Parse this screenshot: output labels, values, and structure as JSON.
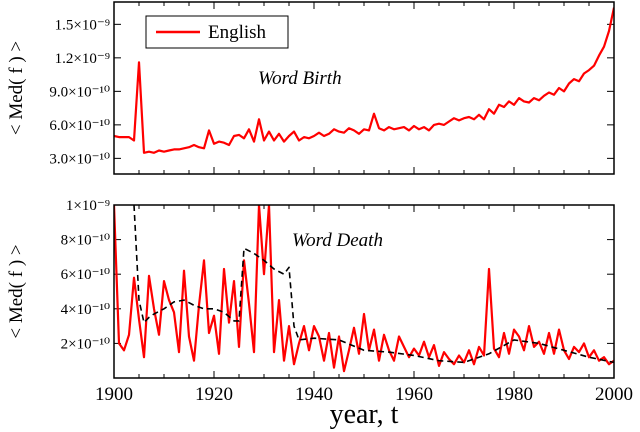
{
  "legend": {
    "entries": [
      "English"
    ]
  },
  "chart_data": [
    {
      "type": "line",
      "annotation": "Word Birth",
      "ylabel": "< Med( f ) >",
      "xlim": [
        1900,
        2000
      ],
      "ylim": [
        1.6e-10,
        1.7e-09
      ],
      "yticks": [
        "3.0×10⁻¹⁰",
        "6.0×10⁻¹⁰",
        "9.0×10⁻¹⁰",
        "1.2×10⁻⁹",
        "1.5×10⁻⁹"
      ],
      "ytick_values": [
        3e-10,
        6e-10,
        9e-10,
        1.2e-09,
        1.5e-09
      ],
      "legend_placement": "top-left",
      "series": [
        {
          "name": "English",
          "color": "#ff0000",
          "style": "solid",
          "x": [
            1900,
            1901,
            1902,
            1903,
            1904,
            1905,
            1906,
            1907,
            1908,
            1909,
            1910,
            1911,
            1912,
            1913,
            1914,
            1915,
            1916,
            1917,
            1918,
            1919,
            1920,
            1921,
            1922,
            1923,
            1924,
            1925,
            1926,
            1927,
            1928,
            1929,
            1930,
            1931,
            1932,
            1933,
            1934,
            1935,
            1936,
            1937,
            1938,
            1939,
            1940,
            1941,
            1942,
            1943,
            1944,
            1945,
            1946,
            1947,
            1948,
            1949,
            1950,
            1951,
            1952,
            1953,
            1954,
            1955,
            1956,
            1957,
            1958,
            1959,
            1960,
            1961,
            1962,
            1963,
            1964,
            1965,
            1966,
            1967,
            1968,
            1969,
            1970,
            1971,
            1972,
            1973,
            1974,
            1975,
            1976,
            1977,
            1978,
            1979,
            1980,
            1981,
            1982,
            1983,
            1984,
            1985,
            1986,
            1987,
            1988,
            1989,
            1990,
            1991,
            1992,
            1993,
            1994,
            1995,
            1996,
            1997,
            1998,
            1999,
            2000
          ],
          "y": [
            5e-10,
            4.9e-10,
            4.9e-10,
            4.9e-10,
            4.6e-10,
            1.16e-09,
            3.5e-10,
            3.6e-10,
            3.5e-10,
            3.7e-10,
            3.6e-10,
            3.7e-10,
            3.8e-10,
            3.8e-10,
            3.9e-10,
            4e-10,
            4.2e-10,
            4e-10,
            3.9e-10,
            5.5e-10,
            4.3e-10,
            4.5e-10,
            4.4e-10,
            4.2e-10,
            5e-10,
            5.1e-10,
            4.8e-10,
            5.6e-10,
            4.5e-10,
            6.5e-10,
            4.6e-10,
            5.4e-10,
            4.6e-10,
            5.2e-10,
            4.5e-10,
            5e-10,
            5.4e-10,
            4.6e-10,
            4.9e-10,
            4.8e-10,
            5e-10,
            5.3e-10,
            5e-10,
            5.2e-10,
            5.6e-10,
            5.4e-10,
            5.3e-10,
            5.7e-10,
            5.5e-10,
            5.2e-10,
            5.6e-10,
            5.5e-10,
            7e-10,
            5.7e-10,
            5.5e-10,
            5.8e-10,
            5.6e-10,
            5.7e-10,
            5.8e-10,
            5.5e-10,
            5.9e-10,
            5.6e-10,
            5.8e-10,
            5.5e-10,
            6e-10,
            6.1e-10,
            6e-10,
            6.3e-10,
            6.6e-10,
            6.4e-10,
            6.6e-10,
            6.7e-10,
            6.5e-10,
            6.9e-10,
            6.5e-10,
            7.4e-10,
            7e-10,
            7.8e-10,
            7.6e-10,
            8.1e-10,
            7.8e-10,
            8.4e-10,
            8.1e-10,
            8e-10,
            8.4e-10,
            8.2e-10,
            8.6e-10,
            8.9e-10,
            8.7e-10,
            9.3e-10,
            9e-10,
            9.7e-10,
            1.01e-09,
            9.9e-10,
            1.06e-09,
            1.09e-09,
            1.13e-09,
            1.22e-09,
            1.3e-09,
            1.44e-09,
            1.65e-09
          ]
        }
      ]
    },
    {
      "type": "line",
      "annotation": "Word Death",
      "ylabel": "< Med( f ) >",
      "xlabel": "year, t",
      "xlim": [
        1900,
        2000
      ],
      "ylim": [
        0,
        1e-09
      ],
      "yticks": [
        "2×10⁻¹⁰",
        "4×10⁻¹⁰",
        "6×10⁻¹⁰",
        "8×10⁻¹⁰",
        "1×10⁻⁹"
      ],
      "ytick_values": [
        2e-10,
        4e-10,
        6e-10,
        8e-10,
        1e-09
      ],
      "xticks": [
        1900,
        1920,
        1940,
        1960,
        1980,
        2000
      ],
      "series": [
        {
          "name": "English",
          "color": "#ff0000",
          "style": "solid",
          "x": [
            1900,
            1901,
            1902,
            1903,
            1904,
            1905,
            1906,
            1907,
            1908,
            1909,
            1910,
            1911,
            1912,
            1913,
            1914,
            1915,
            1916,
            1917,
            1918,
            1919,
            1920,
            1921,
            1922,
            1923,
            1924,
            1925,
            1926,
            1927,
            1928,
            1929,
            1930,
            1931,
            1932,
            1933,
            1934,
            1935,
            1936,
            1937,
            1938,
            1939,
            1940,
            1941,
            1942,
            1943,
            1944,
            1945,
            1946,
            1947,
            1948,
            1949,
            1950,
            1951,
            1952,
            1953,
            1954,
            1955,
            1956,
            1957,
            1958,
            1959,
            1960,
            1961,
            1962,
            1963,
            1964,
            1965,
            1966,
            1967,
            1968,
            1969,
            1970,
            1971,
            1972,
            1973,
            1974,
            1975,
            1976,
            1977,
            1978,
            1979,
            1980,
            1981,
            1982,
            1983,
            1984,
            1985,
            1986,
            1987,
            1988,
            1989,
            1990,
            1991,
            1992,
            1993,
            1994,
            1995,
            1996,
            1997,
            1998,
            1999,
            2000
          ],
          "y": [
            1e-09,
            2e-10,
            1.6e-10,
            2.5e-10,
            5.8e-10,
            3.4e-10,
            1.2e-10,
            5.9e-10,
            4e-10,
            2.5e-10,
            5.6e-10,
            4.5e-10,
            3.8e-10,
            1.5e-10,
            6.2e-10,
            2.4e-10,
            1e-10,
            4.2e-10,
            6.8e-10,
            2.6e-10,
            3.6e-10,
            1.4e-10,
            6.3e-10,
            3.2e-10,
            5.6e-10,
            1.8e-10,
            6.8e-10,
            4.3e-10,
            1.5e-10,
            1e-09,
            6e-10,
            1e-09,
            1.5e-10,
            4.5e-10,
            1e-10,
            3e-10,
            8e-11,
            2e-10,
            3e-10,
            1.6e-10,
            3e-10,
            2.4e-10,
            1e-10,
            2.6e-10,
            6e-11,
            2.4e-10,
            4e-11,
            1.6e-10,
            2.9e-10,
            1.4e-10,
            3.7e-10,
            1.6e-10,
            2.8e-10,
            1e-10,
            2.5e-10,
            1.6e-10,
            1e-10,
            2.4e-10,
            1.8e-10,
            1.2e-10,
            1.7e-10,
            1.3e-10,
            2.1e-10,
            1.2e-10,
            1.9e-10,
            7e-11,
            1.5e-10,
            1.1e-10,
            8e-11,
            1.3e-10,
            9e-11,
            1.6e-10,
            8e-11,
            1.8e-10,
            1.3e-10,
            6.3e-10,
            1.7e-10,
            1.2e-10,
            2.6e-10,
            1.4e-10,
            2.8e-10,
            2.4e-10,
            1.6e-10,
            3e-10,
            1.8e-10,
            2.1e-10,
            1.4e-10,
            2.6e-10,
            1.4e-10,
            2.8e-10,
            1.6e-10,
            1.1e-10,
            1.8e-10,
            1.5e-10,
            2e-10,
            1.2e-10,
            1.6e-10,
            1e-10,
            1.2e-10,
            8e-11,
            1e-10
          ]
        },
        {
          "color": "#000000",
          "style": "dashed",
          "x": [
            1904,
            1905,
            1906,
            1907,
            1908,
            1910,
            1912,
            1914,
            1916,
            1918,
            1920,
            1922,
            1924,
            1925,
            1926,
            1928,
            1930,
            1932,
            1934,
            1935,
            1936,
            1937,
            1940,
            1945,
            1950,
            1955,
            1960,
            1965,
            1970,
            1975,
            1980,
            1985,
            1990,
            1995,
            2000
          ],
          "y": [
            1e-09,
            4.5e-10,
            3.2e-10,
            3.5e-10,
            3.7e-10,
            4e-10,
            4.4e-10,
            4.5e-10,
            4.2e-10,
            4e-10,
            4e-10,
            3.8e-10,
            3.3e-10,
            3.3e-10,
            7.5e-10,
            7.2e-10,
            6.8e-10,
            6.3e-10,
            6e-10,
            6.4e-10,
            3e-10,
            2.2e-10,
            2.3e-10,
            2.2e-10,
            1.6e-10,
            1.5e-10,
            1.3e-10,
            1e-10,
            9e-11,
            1.4e-10,
            2.2e-10,
            2e-10,
            1.6e-10,
            1.2e-10,
            9e-11
          ]
        }
      ]
    }
  ]
}
